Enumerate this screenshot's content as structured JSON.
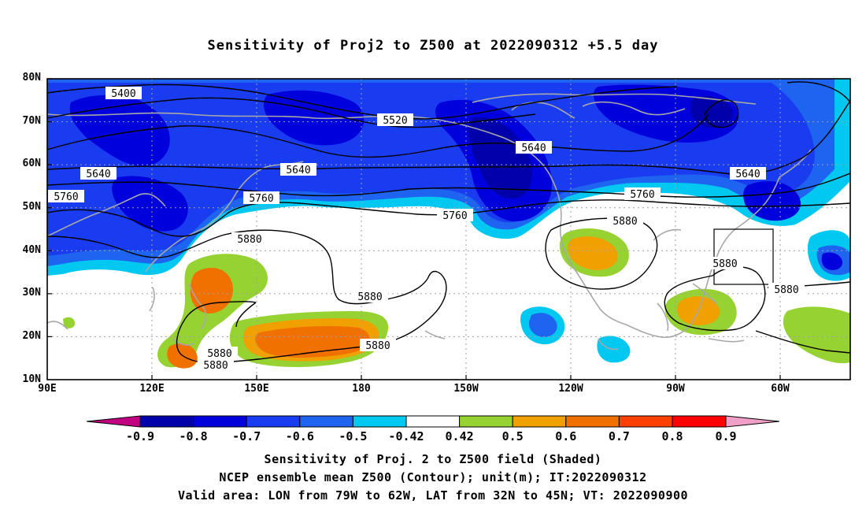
{
  "title": "Sensitivity of Proj2 to Z500 at 2022090312 +5.5 day",
  "lat_labels": [
    "80N",
    "70N",
    "60N",
    "50N",
    "40N",
    "30N",
    "20N",
    "10N"
  ],
  "lon_labels": [
    "90E",
    "120E",
    "150E",
    "180",
    "150W",
    "120W",
    "90W",
    "60W"
  ],
  "contour_labels": [
    "5400",
    "5520",
    "5640",
    "5640",
    "5640",
    "5640",
    "5760",
    "5760",
    "5760",
    "5760",
    "5880",
    "5880",
    "5880",
    "5880",
    "5880",
    "5880",
    "5880"
  ],
  "colorbar": {
    "labels": [
      "-0.9",
      "-0.8",
      "-0.7",
      "-0.6",
      "-0.5",
      "-0.42",
      "0.42",
      "0.5",
      "0.6",
      "0.7",
      "0.8",
      "0.9"
    ],
    "colors": [
      "#c00080",
      "#0000aa",
      "#0000dd",
      "#1a3cf0",
      "#1e64f0",
      "#0a96f0",
      "#00c8f0",
      "#ffffff",
      "#96d232",
      "#f0a000",
      "#f07000",
      "#ff4000",
      "#ff0000",
      "#f0a0c8"
    ]
  },
  "captions": [
    "Sensitivity of Proj. 2 to Z500 field (Shaded)",
    "NCEP ensemble mean Z500 (Contour); unit(m); IT:2022090312",
    "Valid area: LON from 79W to 62W, LAT from 32N to 45N; VT: 2022090900"
  ]
}
